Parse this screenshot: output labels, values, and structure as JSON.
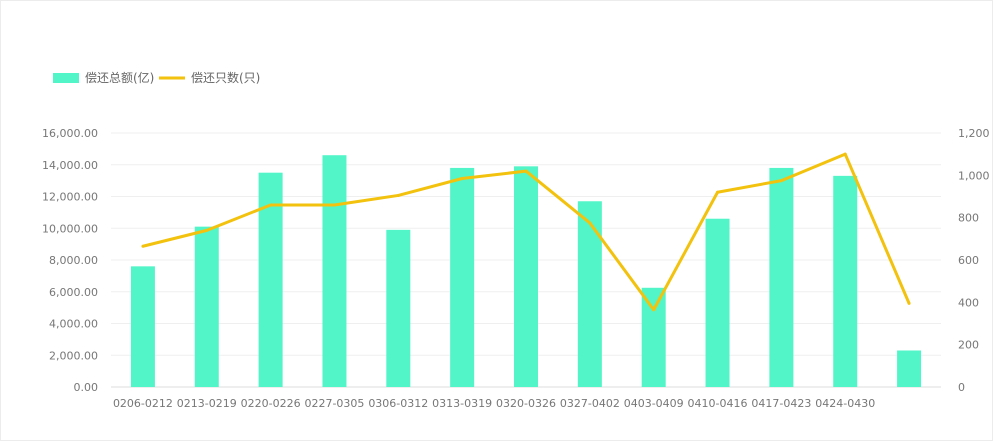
{
  "chart_data": {
    "type": "bar",
    "categories": [
      "0206-0212",
      "0213-0219",
      "0220-0226",
      "0227-0305",
      "0306-0312",
      "0313-0319",
      "0320-0326",
      "0327-0402",
      "0403-0409",
      "0410-0416",
      "0417-0423",
      "0424-0430",
      ""
    ],
    "series": [
      {
        "name": "偿还总额(亿)",
        "type": "bar",
        "axis": "left",
        "color": "#52f5c8",
        "values": [
          7600,
          10100,
          13500,
          14600,
          9900,
          13800,
          13900,
          11700,
          6250,
          10600,
          13800,
          13300,
          2300
        ]
      },
      {
        "name": "偿还只数(只)",
        "type": "line",
        "axis": "right",
        "color": "#f2c20e",
        "values": [
          665,
          740,
          860,
          860,
          905,
          985,
          1020,
          775,
          365,
          920,
          975,
          1100,
          395
        ]
      }
    ],
    "y_left": {
      "min": 0,
      "max": 16000,
      "ticks": [
        "0.00",
        "2,000.00",
        "4,000.00",
        "6,000.00",
        "8,000.00",
        "10,000.00",
        "12,000.00",
        "14,000.00",
        "16,000.00"
      ]
    },
    "y_right": {
      "min": 0,
      "max": 1200,
      "ticks": [
        "0",
        "200",
        "400",
        "600",
        "800",
        "1,000",
        "1,200"
      ]
    },
    "grid": true,
    "legend_position": "top-left"
  }
}
